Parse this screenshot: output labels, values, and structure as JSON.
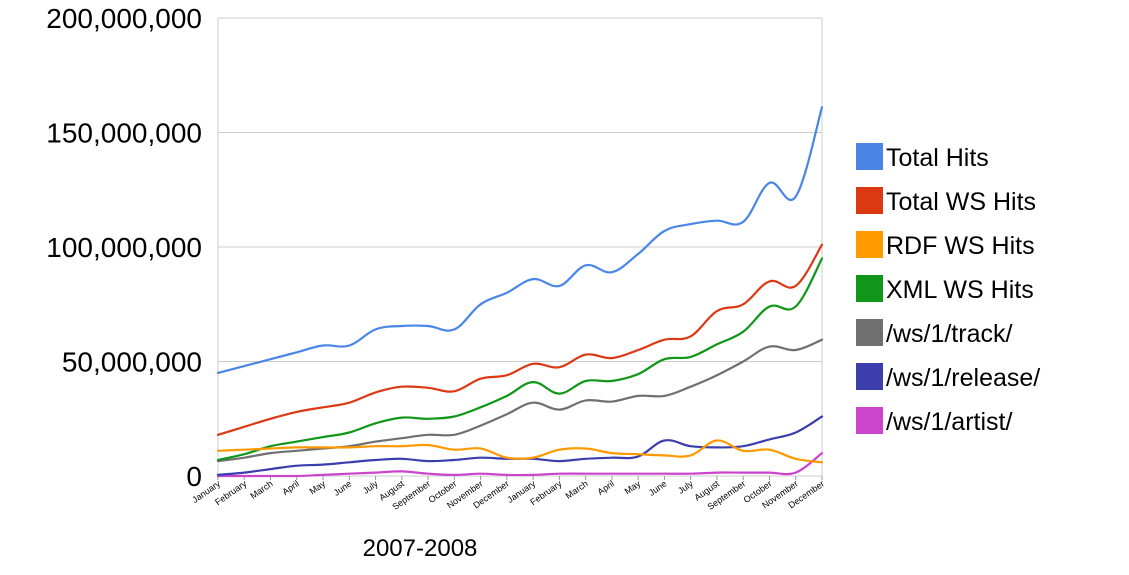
{
  "chart_data": {
    "type": "line",
    "xlabel": "2007-2008",
    "ylim": [
      0,
      200000000
    ],
    "yticks": [
      "0",
      "50,000,000",
      "100,000,000",
      "150,000,000",
      "200,000,000"
    ],
    "ytick_values": [
      0,
      50000000,
      100000000,
      150000000,
      200000000
    ],
    "grid": true,
    "legend_position": "right",
    "categories": [
      "January",
      "February",
      "March",
      "April",
      "May",
      "June",
      "July",
      "August",
      "September",
      "October",
      "November",
      "December",
      "January",
      "February",
      "March",
      "April",
      "May",
      "June",
      "July",
      "August",
      "September",
      "October",
      "November",
      "December"
    ],
    "series": [
      {
        "name": "Total Hits",
        "color": "#4a86e8",
        "values": [
          45000000,
          48000000,
          51000000,
          54000000,
          57000000,
          57000000,
          64000000,
          65500000,
          65500000,
          64000000,
          75000000,
          80000000,
          86000000,
          83000000,
          92000000,
          89000000,
          97000000,
          107000000,
          110000000,
          111500000,
          111000000,
          128000000,
          122000000,
          161000000
        ]
      },
      {
        "name": "Total WS Hits",
        "color": "#dc3912",
        "values": [
          18000000,
          21500000,
          25000000,
          28000000,
          30000000,
          32000000,
          36500000,
          39000000,
          38500000,
          37000000,
          42500000,
          44000000,
          49000000,
          47500000,
          53000000,
          51500000,
          55000000,
          59500000,
          61000000,
          72000000,
          75000000,
          85000000,
          83000000,
          101000000
        ]
      },
      {
        "name": "RDF WS Hits",
        "color": "#ff9900",
        "values": [
          11000000,
          11500000,
          12000000,
          12500000,
          12500000,
          12500000,
          13000000,
          13000000,
          13500000,
          11500000,
          12000000,
          8000000,
          8000000,
          11500000,
          12000000,
          10000000,
          9500000,
          9000000,
          9000000,
          15500000,
          11000000,
          11500000,
          7500000,
          6000000
        ]
      },
      {
        "name": "XML WS Hits",
        "color": "#109618",
        "values": [
          7000000,
          9500000,
          13000000,
          15000000,
          17000000,
          19000000,
          23000000,
          25500000,
          25000000,
          26000000,
          30000000,
          35000000,
          41000000,
          36000000,
          41500000,
          41500000,
          44500000,
          51000000,
          52000000,
          57500000,
          63000000,
          74000000,
          74000000,
          95000000
        ]
      },
      {
        "name": "/ws/1/track/",
        "color": "#707070",
        "values": [
          6500000,
          8000000,
          10000000,
          11000000,
          12000000,
          13000000,
          15000000,
          16500000,
          18000000,
          18000000,
          22000000,
          27000000,
          32000000,
          29000000,
          33000000,
          32500000,
          35000000,
          35000000,
          39000000,
          44000000,
          50000000,
          56500000,
          55000000,
          59500000
        ]
      },
      {
        "name": "/ws/1/release/",
        "color": "#3b3eac",
        "values": [
          500000,
          1500000,
          3000000,
          4500000,
          5000000,
          6000000,
          7000000,
          7500000,
          6500000,
          7000000,
          8000000,
          7500000,
          7500000,
          6500000,
          7500000,
          8000000,
          8500000,
          15500000,
          13000000,
          12500000,
          13000000,
          16000000,
          19000000,
          26000000
        ]
      },
      {
        "name": "/ws/1/artist/",
        "color": "#cc44cc",
        "values": [
          0,
          0,
          0,
          0,
          500000,
          1000000,
          1500000,
          2000000,
          1000000,
          500000,
          1000000,
          500000,
          500000,
          1000000,
          1000000,
          1000000,
          1000000,
          1000000,
          1000000,
          1500000,
          1500000,
          1500000,
          1500000,
          10000000
        ]
      }
    ]
  }
}
